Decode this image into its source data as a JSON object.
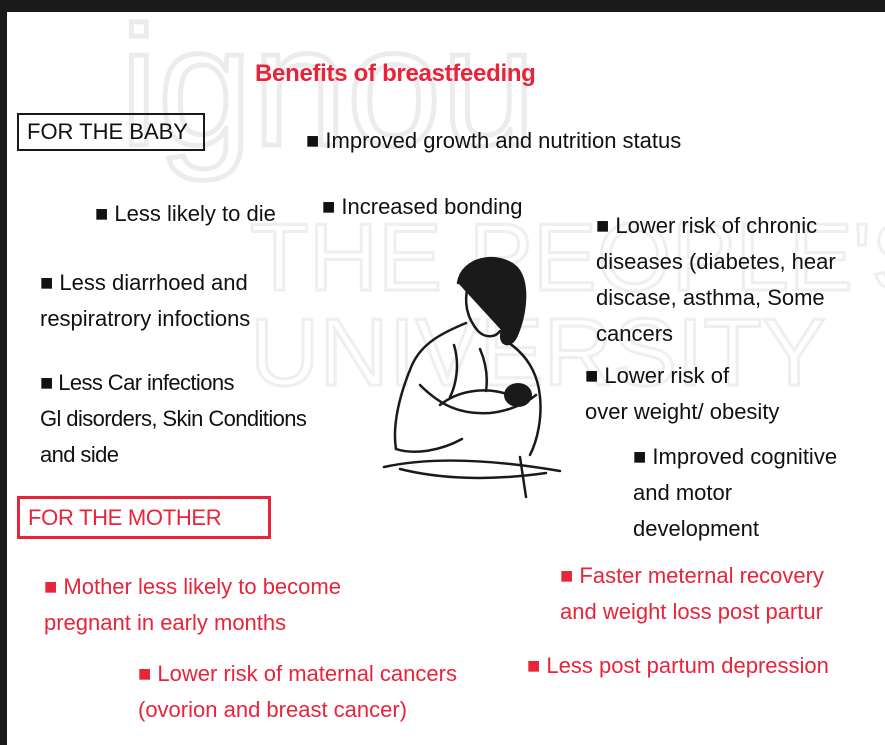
{
  "title": "Benefits of breastfeeding",
  "colors": {
    "accent_red": "#e8243a",
    "text": "#111111",
    "frame": "#1a1a1a",
    "watermark": "#f0f0f0"
  },
  "watermark_text": [
    "ignou",
    "THE PEOPLE'S",
    "UNIVERSITY"
  ],
  "baby": {
    "heading": "FOR THE BABY",
    "items": {
      "growth": "■ Improved growth and nutrition status",
      "die": "■  Less likely to die",
      "bonding": "■ Increased bonding",
      "chronic": "■ Lower risk of chronic\n   diseases (diabetes, hear\n   discase, asthma, Some\n   cancers",
      "diarrhoea": "■ Less diarrhoed and\n   respiratrory infoctions",
      "ear": "■ Less Car infections\n   Gl disorders, Skin Conditions\n   and side",
      "obesity": "■  Lower risk of\n    over weight/ obesity",
      "cognitive": "■  Improved cognitive\n    and motor\n    development"
    }
  },
  "mother": {
    "heading": "FOR THE MOTHER",
    "items": {
      "pregnant": "■ Mother less likely to become\n   pregnant in early months",
      "recovery": "■ Faster meternal recovery\n   and weight loss post partur",
      "cancers": "■ Lower risk of maternal cancers\n   (ovorion and breast cancer)",
      "depression": "■ Less post partum depression"
    }
  }
}
